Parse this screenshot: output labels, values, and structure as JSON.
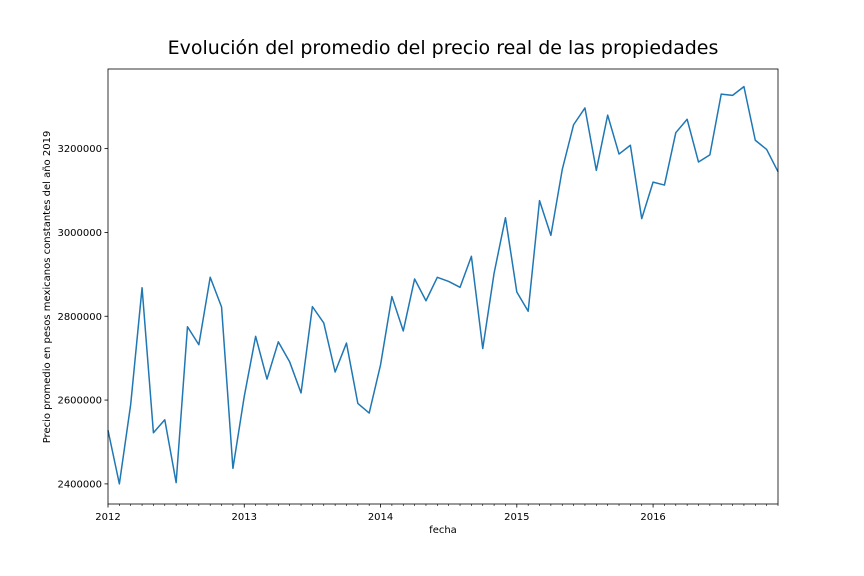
{
  "chart_data": {
    "type": "line",
    "title": "Evolución del promedio del precio real de las propiedades",
    "xlabel": "fecha",
    "ylabel": "Precio promedio en pesos mexicanos constantes del año 2019",
    "x_tick_labels": [
      "2012",
      "2013",
      "2014",
      "2015",
      "2016"
    ],
    "y_tick_labels": [
      "2400000",
      "2600000",
      "2800000",
      "3000000",
      "3200000"
    ],
    "y_ticks": [
      2400000,
      2600000,
      2800000,
      3000000,
      3200000
    ],
    "ylim": [
      2352000,
      3390000
    ],
    "xlim": [
      "2012-01",
      "2016-12"
    ],
    "grid": false,
    "legend": "none",
    "series": [
      {
        "color": "#1f77b4",
        "x": [
          "2012-01",
          "2012-02",
          "2012-03",
          "2012-04",
          "2012-05",
          "2012-06",
          "2012-07",
          "2012-08",
          "2012-09",
          "2012-10",
          "2012-11",
          "2012-12",
          "2013-01",
          "2013-02",
          "2013-03",
          "2013-04",
          "2013-05",
          "2013-06",
          "2013-07",
          "2013-08",
          "2013-09",
          "2013-10",
          "2013-11",
          "2013-12",
          "2014-01",
          "2014-02",
          "2014-03",
          "2014-04",
          "2014-05",
          "2014-06",
          "2014-07",
          "2014-08",
          "2014-09",
          "2014-10",
          "2014-11",
          "2014-12",
          "2015-01",
          "2015-02",
          "2015-03",
          "2015-04",
          "2015-05",
          "2015-06",
          "2015-07",
          "2015-08",
          "2015-09",
          "2015-10",
          "2015-11",
          "2015-12",
          "2016-01",
          "2016-02",
          "2016-03",
          "2016-04",
          "2016-05",
          "2016-06",
          "2016-07",
          "2016-08",
          "2016-09",
          "2016-10",
          "2016-11",
          "2016-12"
        ],
        "values": [
          2528000,
          2400000,
          2590000,
          2868000,
          2522000,
          2553000,
          2403000,
          2775000,
          2732000,
          2893000,
          2822000,
          2437000,
          2609000,
          2752000,
          2650000,
          2739000,
          2691000,
          2617000,
          2823000,
          2784000,
          2667000,
          2736000,
          2592000,
          2569000,
          2684000,
          2847000,
          2765000,
          2889000,
          2837000,
          2893000,
          2883000,
          2869000,
          2943000,
          2723000,
          2903000,
          3035000,
          2858000,
          2812000,
          3076000,
          2993000,
          3150000,
          3257000,
          3297000,
          3148000,
          3280000,
          3187000,
          3208000,
          3033000,
          3120000,
          3113000,
          3238000,
          3270000,
          3168000,
          3185000,
          3330000,
          3327000,
          3348000,
          3220000,
          3198000,
          3145000
        ]
      }
    ]
  }
}
